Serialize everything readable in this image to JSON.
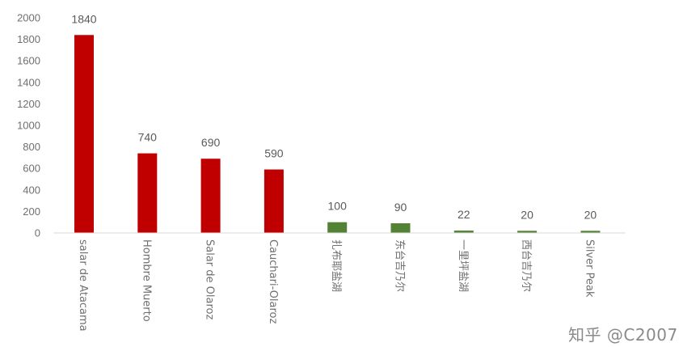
{
  "chart_data": {
    "type": "bar",
    "title": "",
    "xlabel": "",
    "ylabel": "",
    "ylim": [
      0,
      2000
    ],
    "yticks": [
      0,
      200,
      400,
      600,
      800,
      1000,
      1200,
      1400,
      1600,
      1800,
      2000
    ],
    "grid": false,
    "legend": "none",
    "categories": [
      "salar de Atacama",
      "Hombre Muerto",
      "Salar de Olaroz",
      "Cauchari-Olaroz",
      "扎布耶盐湖",
      "东台吉乃尔",
      "一里坪盐湖",
      "西台吉乃尔",
      "Silver Peak"
    ],
    "values": [
      1840,
      740,
      690,
      590,
      100,
      90,
      22,
      20,
      20
    ],
    "data_labels": [
      "1840",
      "740",
      "690",
      "590",
      "100",
      "90",
      "22",
      "20",
      "20"
    ],
    "bar_colors": [
      "#c00000",
      "#c00000",
      "#c00000",
      "#c00000",
      "#548235",
      "#548235",
      "#548235",
      "#548235",
      "#548235"
    ]
  },
  "watermark": "知乎 @C2007"
}
